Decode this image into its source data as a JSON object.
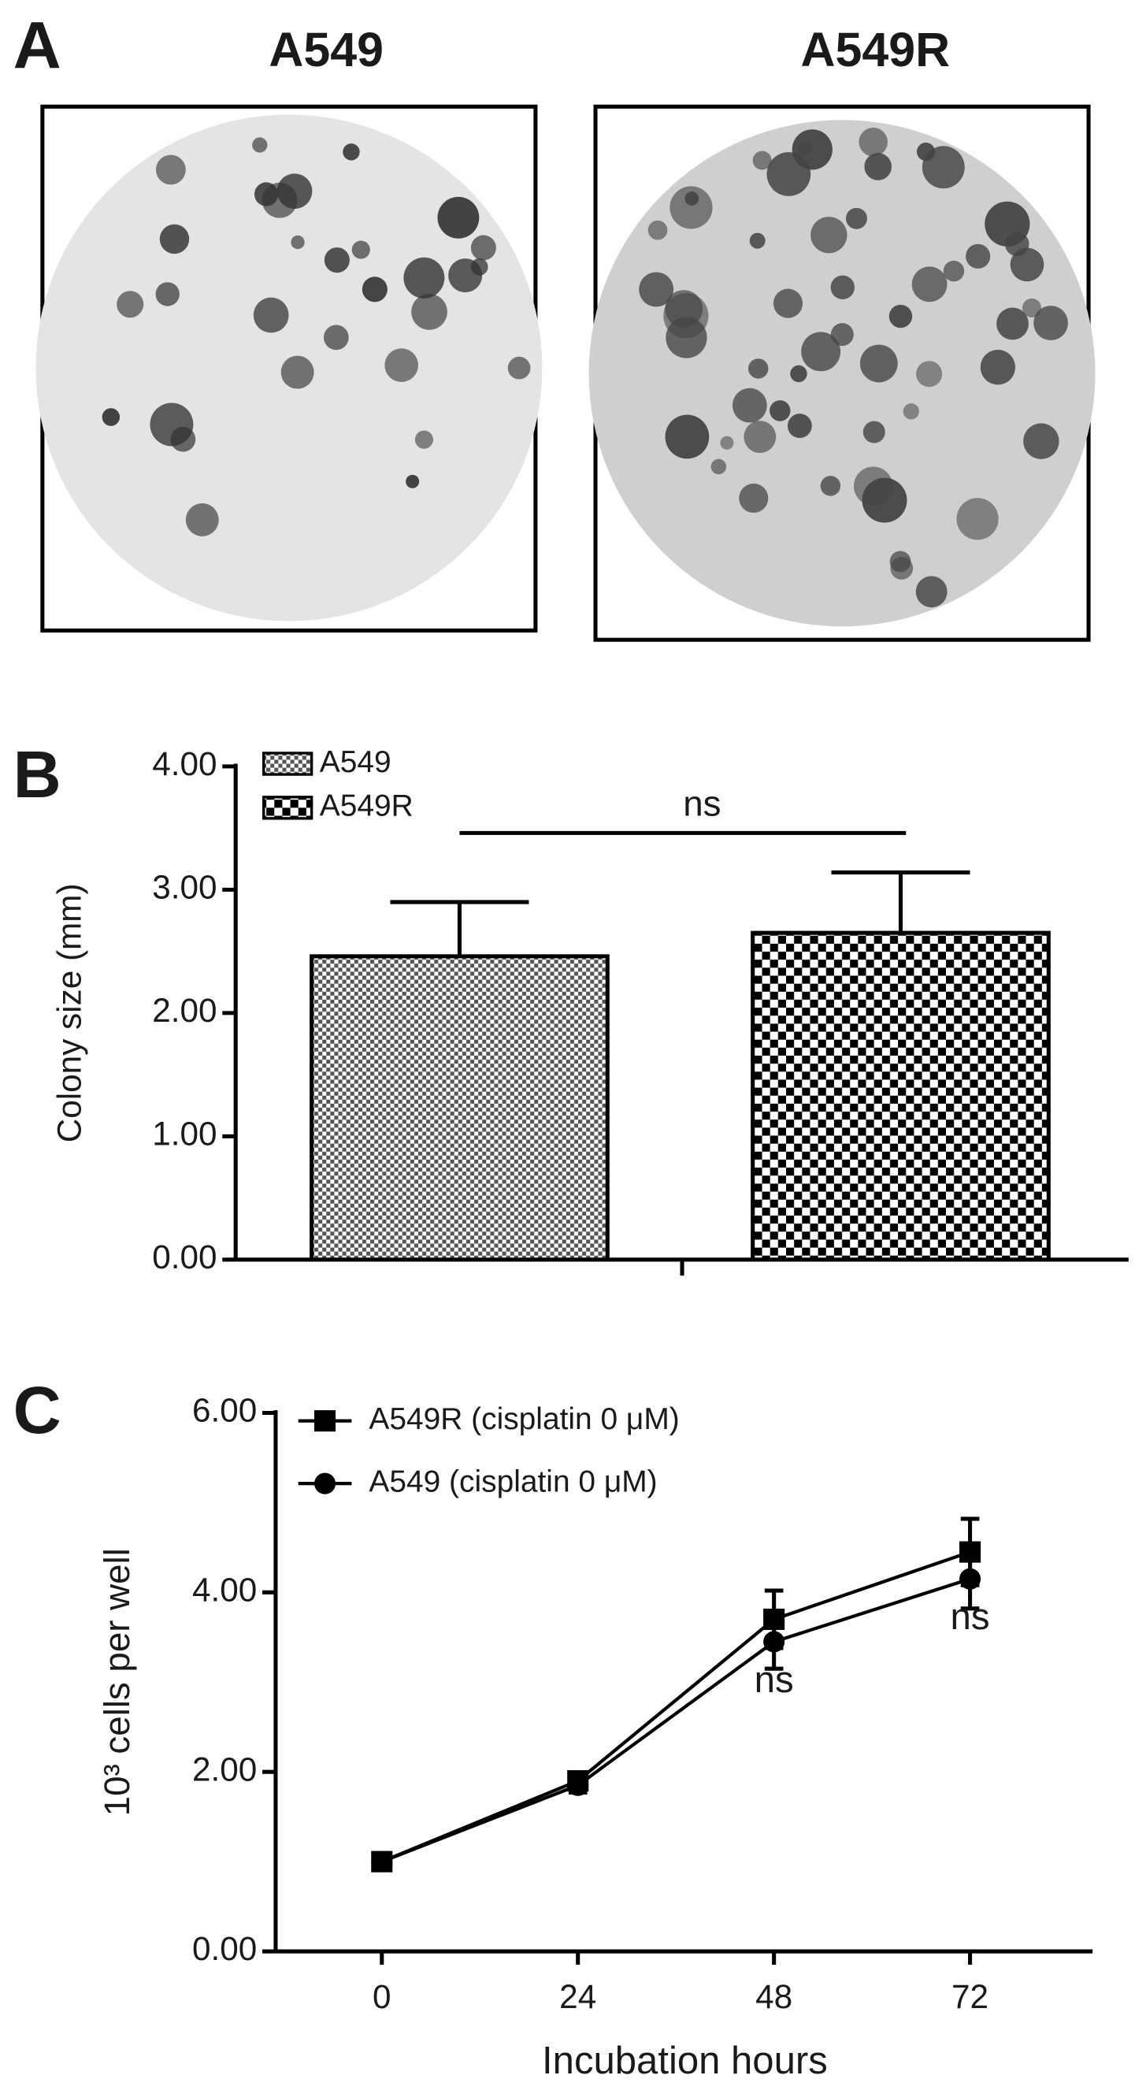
{
  "panel_a": {
    "label": "A",
    "images": [
      {
        "title": "A549"
      },
      {
        "title": "A549R"
      }
    ]
  },
  "chart_data": [
    {
      "type": "bar",
      "panel_label": "B",
      "ylabel": "Colony size (mm)",
      "series": [
        {
          "name": "A549",
          "color": "#000000",
          "pattern": "fine-check",
          "values": [
            2.46
          ],
          "errors": [
            0.44
          ]
        },
        {
          "name": "A549R",
          "color": "#000000",
          "pattern": "coarse-check",
          "values": [
            2.65
          ],
          "errors": [
            0.49
          ]
        }
      ],
      "ylim": [
        0,
        4
      ],
      "yticks": [
        {
          "value": 0,
          "label": "0.00"
        },
        {
          "value": 1,
          "label": "1.00"
        },
        {
          "value": 2,
          "label": "2.00"
        },
        {
          "value": 3,
          "label": "3.00"
        },
        {
          "value": 4,
          "label": "4.00"
        }
      ],
      "annotations": [
        {
          "text": "ns",
          "value": 3.46
        }
      ],
      "legend": "top-left"
    },
    {
      "type": "line",
      "panel_label": "C",
      "xlabel": "Incubation hours",
      "ylabel": "10³ cells per well",
      "x": [
        0,
        24,
        48,
        72
      ],
      "series": [
        {
          "name": "A549R (cisplatin 0 μM)",
          "color": "#000000",
          "marker": "square",
          "values": [
            1.0,
            1.9,
            3.7,
            4.45
          ],
          "errors": [
            0.05,
            0.08,
            0.32,
            0.37
          ]
        },
        {
          "name": "A549 (cisplatin 0 μM)",
          "color": "#000000",
          "marker": "circle",
          "values": [
            1.0,
            1.85,
            3.45,
            4.15
          ],
          "errors": [
            0.05,
            0.08,
            0.3,
            0.33
          ]
        }
      ],
      "xlim": [
        -13,
        87
      ],
      "xticks": [
        0,
        24,
        48,
        72
      ],
      "ylim": [
        0,
        6
      ],
      "yticks": [
        {
          "value": 0,
          "label": "0.00"
        },
        {
          "value": 2,
          "label": "2.00"
        },
        {
          "value": 4,
          "label": "4.00"
        },
        {
          "value": 6,
          "label": "6.00"
        }
      ],
      "annotations": [
        {
          "text": "ns",
          "x": 48,
          "y": 3.0
        },
        {
          "text": "ns",
          "x": 72,
          "y": 3.7
        }
      ],
      "legend": "top-left"
    }
  ]
}
